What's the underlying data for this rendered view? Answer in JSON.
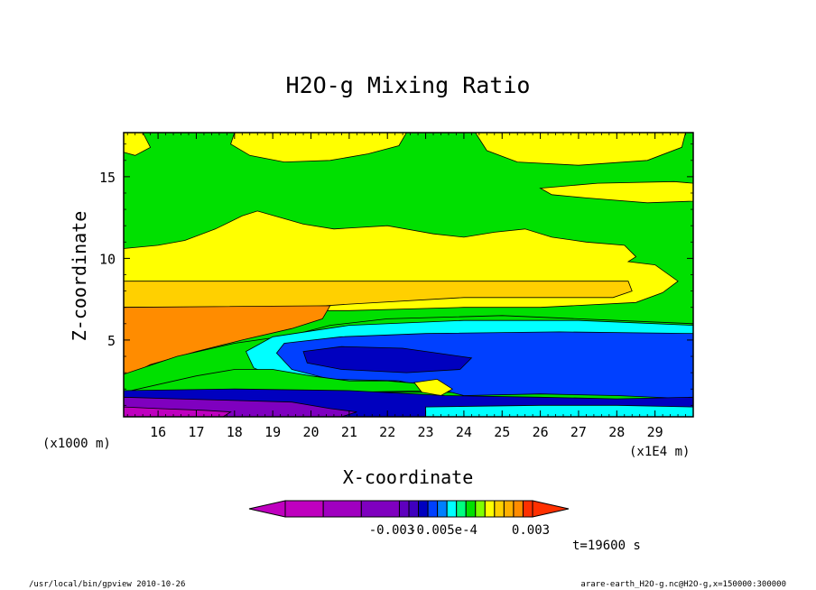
{
  "chart_data": {
    "type": "heatmap",
    "title": "H2O-g Mixing Ratio",
    "xlabel": "X-coordinate",
    "ylabel": "Z-coordinate",
    "x_unit_note": "(x1E4 m)",
    "y_unit_note": "(x1000 m)",
    "xlim": [
      15.1,
      30.0
    ],
    "ylim": [
      0.3,
      17.7
    ],
    "x_ticks": [
      "16",
      "17",
      "18",
      "19",
      "20",
      "21",
      "22",
      "23",
      "24",
      "25",
      "26",
      "27",
      "28",
      "29"
    ],
    "x_tick_values": [
      16,
      17,
      18,
      19,
      20,
      21,
      22,
      23,
      24,
      25,
      26,
      27,
      28,
      29
    ],
    "y_ticks": [
      "5",
      "10",
      "15"
    ],
    "y_tick_values": [
      5,
      10,
      15
    ],
    "colorbar": {
      "colors": [
        "#bf00bf",
        "#a000c0",
        "#7f00bf",
        "#5f00bf",
        "#3f00bf",
        "#0000bf",
        "#0040ff",
        "#0080ff",
        "#00ffff",
        "#00ff80",
        "#00e000",
        "#80ff00",
        "#ffff00",
        "#ffd000",
        "#ffb000",
        "#ff8c00",
        "#ff3000"
      ],
      "labels": [
        "-0.003",
        "-0.005e-4",
        "0.003"
      ]
    },
    "time_label": "t=19600 s",
    "footer_left": "/usr/local/bin/gpview  2010-10-26",
    "footer_right": "arare-earth_H2O-g.nc@H2O-g,x=150000:300000",
    "regions": [
      {
        "name": "background",
        "color": "#00e000",
        "points": [
          [
            15.1,
            0.3
          ],
          [
            30,
            0.3
          ],
          [
            30,
            17.7
          ],
          [
            15.1,
            17.7
          ]
        ]
      },
      {
        "name": "top-yellow-left",
        "color": "#ffff00",
        "points": [
          [
            15.1,
            17.7
          ],
          [
            15.6,
            17.7
          ],
          [
            15.8,
            16.8
          ],
          [
            15.4,
            16.3
          ],
          [
            15.1,
            16.5
          ]
        ]
      },
      {
        "name": "top-yellow-mid",
        "color": "#ffff00",
        "points": [
          [
            18,
            17.7
          ],
          [
            22.5,
            17.7
          ],
          [
            22.3,
            16.9
          ],
          [
            21.5,
            16.4
          ],
          [
            20.5,
            16.0
          ],
          [
            19.3,
            15.9
          ],
          [
            18.4,
            16.3
          ],
          [
            17.9,
            17.0
          ]
        ]
      },
      {
        "name": "top-yellow-right",
        "color": "#ffff00",
        "points": [
          [
            24.3,
            17.7
          ],
          [
            29.8,
            17.7
          ],
          [
            29.7,
            16.8
          ],
          [
            28.8,
            16.0
          ],
          [
            27,
            15.7
          ],
          [
            25.4,
            15.9
          ],
          [
            24.6,
            16.6
          ]
        ]
      },
      {
        "name": "right-yellow-patch",
        "color": "#ffff00",
        "points": [
          [
            26,
            14.3
          ],
          [
            27.5,
            14.6
          ],
          [
            29.5,
            14.7
          ],
          [
            30,
            14.6
          ],
          [
            30,
            13.5
          ],
          [
            28.8,
            13.4
          ],
          [
            27.2,
            13.7
          ],
          [
            26.3,
            13.9
          ]
        ]
      },
      {
        "name": "upper-yellow-band",
        "color": "#ffff00",
        "points": [
          [
            15.1,
            10.6
          ],
          [
            16,
            10.8
          ],
          [
            16.7,
            11.1
          ],
          [
            17.5,
            11.8
          ],
          [
            18.2,
            12.6
          ],
          [
            18.6,
            12.9
          ],
          [
            19.2,
            12.5
          ],
          [
            19.8,
            12.1
          ],
          [
            20.6,
            11.8
          ],
          [
            22,
            12.0
          ],
          [
            23.2,
            11.5
          ],
          [
            24,
            11.3
          ],
          [
            24.8,
            11.6
          ],
          [
            25.6,
            11.8
          ],
          [
            26.3,
            11.3
          ],
          [
            27.2,
            11.0
          ],
          [
            28.2,
            10.8
          ],
          [
            28.5,
            10.1
          ],
          [
            28.3,
            9.8
          ],
          [
            29,
            9.6
          ],
          [
            29.6,
            8.6
          ],
          [
            29.2,
            7.9
          ],
          [
            28.5,
            7.3
          ],
          [
            26,
            7.0
          ],
          [
            24,
            7.0
          ],
          [
            21,
            6.8
          ],
          [
            15.1,
            6.8
          ]
        ]
      },
      {
        "name": "light-orange-band",
        "color": "#ffd000",
        "points": [
          [
            15.1,
            8.6
          ],
          [
            28.3,
            8.6
          ],
          [
            28.4,
            8.0
          ],
          [
            27.9,
            7.6
          ],
          [
            24,
            7.6
          ],
          [
            21,
            7.2
          ],
          [
            19.8,
            7.0
          ],
          [
            15.1,
            7.0
          ]
        ]
      },
      {
        "name": "orange-wedge",
        "color": "#ff8c00",
        "points": [
          [
            15.1,
            7.0
          ],
          [
            20.5,
            7.1
          ],
          [
            20.3,
            6.3
          ],
          [
            19.5,
            5.7
          ],
          [
            18.2,
            5.0
          ],
          [
            17,
            4.3
          ],
          [
            15.8,
            3.5
          ],
          [
            15.3,
            2.9
          ],
          [
            15.1,
            2.9
          ]
        ]
      },
      {
        "name": "green-lower-field",
        "color": "#00e000",
        "points": [
          [
            15.1,
            2.9
          ],
          [
            16.5,
            4.0
          ],
          [
            18,
            4.8
          ],
          [
            19.5,
            5.3
          ],
          [
            20.5,
            5.9
          ],
          [
            22,
            6.3
          ],
          [
            25,
            6.5
          ],
          [
            28,
            6.2
          ],
          [
            30,
            6.0
          ],
          [
            30,
            1.8
          ],
          [
            15.1,
            1.8
          ]
        ]
      },
      {
        "name": "cyan-layer",
        "color": "#00ffff",
        "points": [
          [
            19,
            5.2
          ],
          [
            21,
            5.9
          ],
          [
            24,
            6.2
          ],
          [
            27,
            6.2
          ],
          [
            30,
            5.9
          ],
          [
            30,
            1.7
          ],
          [
            27,
            1.8
          ],
          [
            24,
            1.9
          ],
          [
            21,
            2.3
          ],
          [
            19,
            2.8
          ],
          [
            18.5,
            3.3
          ],
          [
            18.3,
            4.3
          ]
        ]
      },
      {
        "name": "blue-core",
        "color": "#0040ff",
        "points": [
          [
            19.3,
            4.8
          ],
          [
            20.8,
            5.2
          ],
          [
            23,
            5.4
          ],
          [
            26.5,
            5.5
          ],
          [
            30,
            5.4
          ],
          [
            30,
            1.4
          ],
          [
            28,
            1.6
          ],
          [
            26,
            1.7
          ],
          [
            24,
            1.6
          ],
          [
            23.5,
            1.9
          ],
          [
            22.3,
            2.5
          ],
          [
            20.5,
            2.6
          ],
          [
            19.5,
            3.2
          ],
          [
            19.1,
            4.2
          ]
        ]
      },
      {
        "name": "dark-blue-core",
        "color": "#0000bf",
        "points": [
          [
            19.8,
            4.3
          ],
          [
            20.8,
            4.6
          ],
          [
            22.4,
            4.5
          ],
          [
            23.3,
            4.2
          ],
          [
            24.2,
            3.9
          ],
          [
            23.9,
            3.2
          ],
          [
            22.5,
            3.0
          ],
          [
            20.8,
            3.2
          ],
          [
            19.9,
            3.6
          ]
        ]
      },
      {
        "name": "green-strip",
        "color": "#00e000",
        "points": [
          [
            17,
            2.8
          ],
          [
            18,
            3.2
          ],
          [
            19,
            3.2
          ],
          [
            20,
            2.8
          ],
          [
            21,
            2.5
          ],
          [
            22,
            2.5
          ],
          [
            23,
            2.3
          ],
          [
            23.3,
            1.9
          ],
          [
            21,
            1.8
          ],
          [
            19,
            1.6
          ],
          [
            17.4,
            1.5
          ],
          [
            15.8,
            1.6
          ],
          [
            15.1,
            1.8
          ]
        ]
      },
      {
        "name": "yellow-bump",
        "color": "#ffff00",
        "points": [
          [
            22.7,
            2.4
          ],
          [
            23.3,
            2.6
          ],
          [
            23.7,
            2.0
          ],
          [
            23.4,
            1.6
          ],
          [
            22.9,
            1.8
          ]
        ]
      },
      {
        "name": "deep-blue-bottom",
        "color": "#0000bf",
        "points": [
          [
            15.1,
            1.9
          ],
          [
            18,
            2.0
          ],
          [
            21,
            1.9
          ],
          [
            23.5,
            1.6
          ],
          [
            26,
            1.5
          ],
          [
            28,
            1.4
          ],
          [
            30,
            1.5
          ],
          [
            30,
            0.3
          ],
          [
            15.1,
            0.3
          ]
        ]
      },
      {
        "name": "cyan-bottom-strip",
        "color": "#00ffff",
        "points": [
          [
            23,
            0.9
          ],
          [
            26,
            1.0
          ],
          [
            28,
            1.0
          ],
          [
            30,
            0.9
          ],
          [
            30,
            0.3
          ],
          [
            23,
            0.3
          ]
        ]
      },
      {
        "name": "purple-base",
        "color": "#7f00bf",
        "points": [
          [
            15.1,
            1.5
          ],
          [
            16.5,
            1.4
          ],
          [
            18,
            1.3
          ],
          [
            19.5,
            1.2
          ],
          [
            20.5,
            0.8
          ],
          [
            21.2,
            0.6
          ],
          [
            20.8,
            0.3
          ],
          [
            15.1,
            0.3
          ]
        ]
      },
      {
        "name": "magenta-base",
        "color": "#bf00bf",
        "points": [
          [
            15.1,
            0.9
          ],
          [
            16,
            0.8
          ],
          [
            17.2,
            0.7
          ],
          [
            17.9,
            0.6
          ],
          [
            17.7,
            0.3
          ],
          [
            15.1,
            0.3
          ]
        ]
      }
    ]
  }
}
